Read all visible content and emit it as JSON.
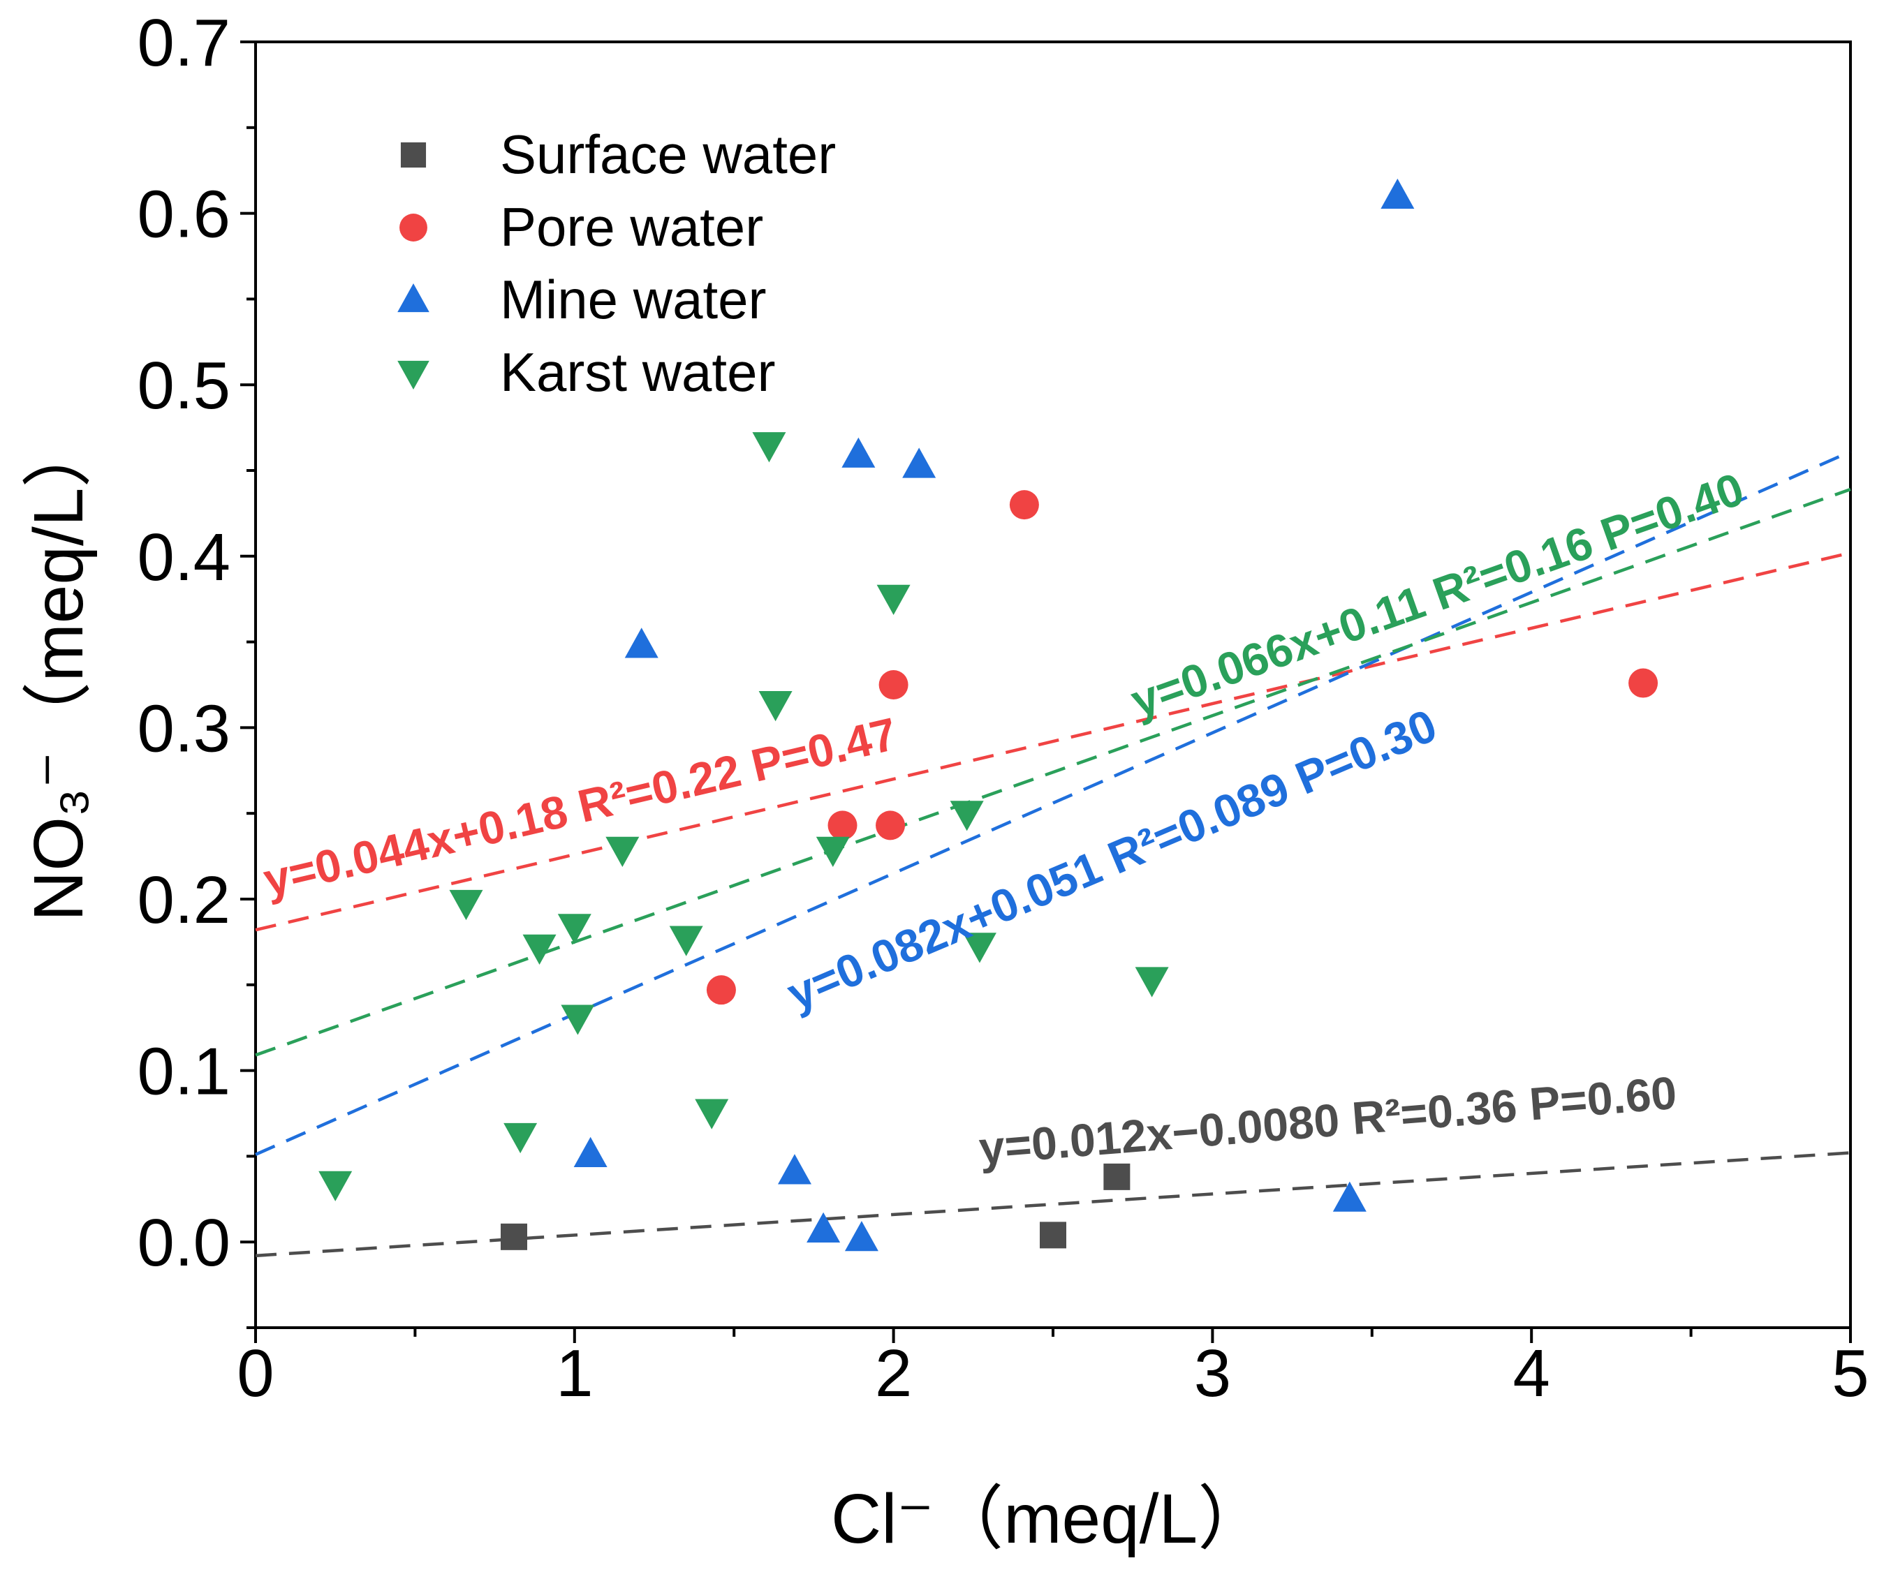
{
  "chart_data": {
    "type": "scatter",
    "xlabel": "Cl⁻（meq/L）",
    "ylabel": "NO₃⁻（meq/L）",
    "xlim": [
      0,
      5
    ],
    "ylim": [
      -0.05,
      0.7
    ],
    "x_ticks": [
      "0",
      "1",
      "2",
      "3",
      "4",
      "5"
    ],
    "y_ticks": [
      "0.0",
      "0.1",
      "0.2",
      "0.3",
      "0.4",
      "0.5",
      "0.6",
      "0.7"
    ],
    "series": [
      {
        "name": "Surface water",
        "marker": "square",
        "color": "#4d4d4d",
        "points": [
          [
            0.81,
            0.003
          ],
          [
            2.5,
            0.004
          ],
          [
            2.7,
            0.038
          ]
        ],
        "fit": {
          "slope": 0.012,
          "intercept": -0.008,
          "label": "y=0.012x−0.0080  R²=0.36 P=0.60"
        }
      },
      {
        "name": "Pore water",
        "marker": "circle",
        "color": "#f04343",
        "points": [
          [
            1.46,
            0.147
          ],
          [
            1.84,
            0.243
          ],
          [
            1.99,
            0.243
          ],
          [
            2.0,
            0.325
          ],
          [
            2.41,
            0.43
          ],
          [
            4.35,
            0.326
          ]
        ],
        "fit": {
          "slope": 0.044,
          "intercept": 0.182,
          "label": "y=0.044x+0.18  R²=0.22 P=0.47"
        }
      },
      {
        "name": "Mine water",
        "marker": "triangle-up",
        "color": "#1f6fdc",
        "points": [
          [
            1.05,
            0.051
          ],
          [
            1.21,
            0.348
          ],
          [
            1.69,
            0.041
          ],
          [
            1.78,
            0.007
          ],
          [
            1.89,
            0.459
          ],
          [
            1.9,
            0.002
          ],
          [
            2.08,
            0.453
          ],
          [
            3.43,
            0.025
          ],
          [
            3.58,
            0.61
          ]
        ],
        "fit": {
          "slope": 0.082,
          "intercept": 0.051,
          "label": "y=0.082x+0.051  R²=0.089 P=0.30"
        }
      },
      {
        "name": "Karst water",
        "marker": "triangle-down",
        "color": "#2aa05a",
        "points": [
          [
            0.25,
            0.034
          ],
          [
            0.66,
            0.198
          ],
          [
            0.83,
            0.062
          ],
          [
            0.89,
            0.172
          ],
          [
            1.0,
            0.184
          ],
          [
            1.01,
            0.131
          ],
          [
            1.15,
            0.229
          ],
          [
            1.35,
            0.177
          ],
          [
            1.43,
            0.076
          ],
          [
            1.61,
            0.465
          ],
          [
            1.63,
            0.314
          ],
          [
            1.81,
            0.229
          ],
          [
            2.0,
            0.376
          ],
          [
            2.23,
            0.25
          ],
          [
            2.27,
            0.173
          ],
          [
            2.81,
            0.153
          ]
        ],
        "fit": {
          "slope": 0.066,
          "intercept": 0.109,
          "label": "y=0.066x+0.11  R²=0.16 P=0.40"
        }
      }
    ]
  }
}
